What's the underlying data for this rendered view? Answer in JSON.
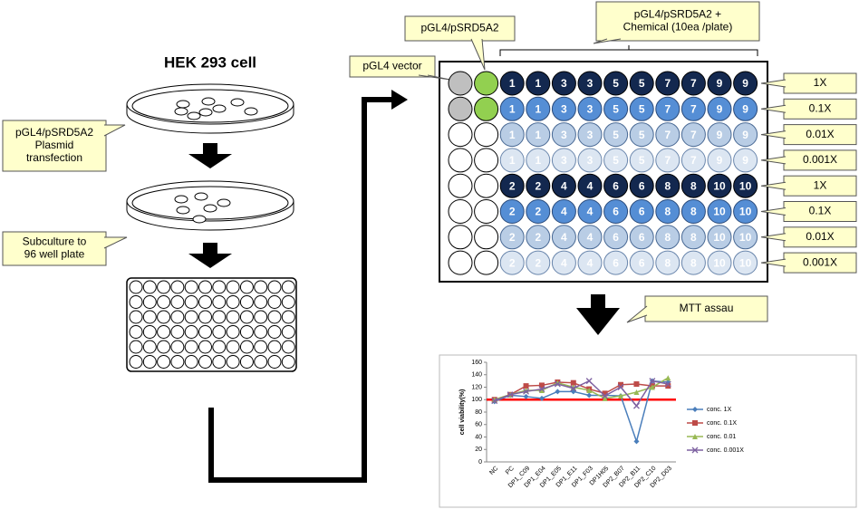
{
  "title": "HEK 293 cell",
  "transfection_label": [
    "pGL4/pSRD5A2",
    "Plasmid",
    "transfection"
  ],
  "subculture_label": [
    "Subculture to",
    "96 well plate"
  ],
  "vector_label": "pGL4 vector",
  "construct_label": "pGL4/pSRD5A2",
  "chemical_label": [
    "pGL4/pSRD5A2 +",
    "Chemical  (10ea /plate)"
  ],
  "concentrations": [
    "1X",
    "0.1X",
    "0.01X",
    "0.001X",
    "1X",
    "0.1X",
    "0.01X",
    "0.001X"
  ],
  "assay_label": "MTT assau",
  "plate": {
    "rows": [
      [
        1,
        1,
        3,
        3,
        5,
        5,
        7,
        7,
        9,
        9
      ],
      [
        1,
        1,
        3,
        3,
        5,
        5,
        7,
        7,
        9,
        9
      ],
      [
        1,
        1,
        3,
        3,
        5,
        5,
        7,
        7,
        9,
        9
      ],
      [
        1,
        1,
        3,
        3,
        5,
        5,
        7,
        7,
        9,
        9
      ],
      [
        2,
        2,
        4,
        4,
        6,
        6,
        8,
        8,
        10,
        10
      ],
      [
        2,
        2,
        4,
        4,
        6,
        6,
        8,
        8,
        10,
        10
      ],
      [
        2,
        2,
        4,
        4,
        6,
        6,
        8,
        8,
        10,
        10
      ],
      [
        2,
        2,
        4,
        4,
        6,
        6,
        8,
        8,
        10,
        10
      ]
    ]
  },
  "chart_data": {
    "type": "line",
    "ylabel": "cell viability(%)",
    "categories": [
      "NC",
      "PC",
      "DP1_C09",
      "DP1_E04",
      "DP1_E05",
      "DP1_E11",
      "DP1_F03",
      "DP1H05",
      "DP2_B07",
      "DP2_B11",
      "DP2_C10",
      "DP2_D03"
    ],
    "series": [
      {
        "name": "conc. 1X",
        "color": "#4a7ebb",
        "marker": "diamond",
        "values": [
          97,
          107,
          105,
          102,
          113,
          113,
          107,
          107,
          106,
          33,
          130,
          128
        ]
      },
      {
        "name": "conc. 0.1X",
        "color": "#be4b48",
        "marker": "square",
        "values": [
          100,
          108,
          122,
          123,
          128,
          127,
          117,
          110,
          124,
          125,
          122,
          122
        ]
      },
      {
        "name": "conc. 0.01",
        "color": "#98b954",
        "marker": "triangle",
        "values": [
          100,
          108,
          115,
          115,
          127,
          120,
          115,
          102,
          106,
          112,
          120,
          135
        ]
      },
      {
        "name": "conc. 0.001X",
        "color": "#7d60a0",
        "marker": "x",
        "values": [
          98,
          108,
          113,
          117,
          125,
          118,
          130,
          106,
          120,
          90,
          130,
          125
        ]
      }
    ],
    "ylim": [
      0,
      160
    ],
    "yticks": [
      0,
      20,
      40,
      60,
      80,
      100,
      120,
      140,
      160
    ],
    "reference_line": {
      "value": 100,
      "color": "#ff0000"
    }
  }
}
